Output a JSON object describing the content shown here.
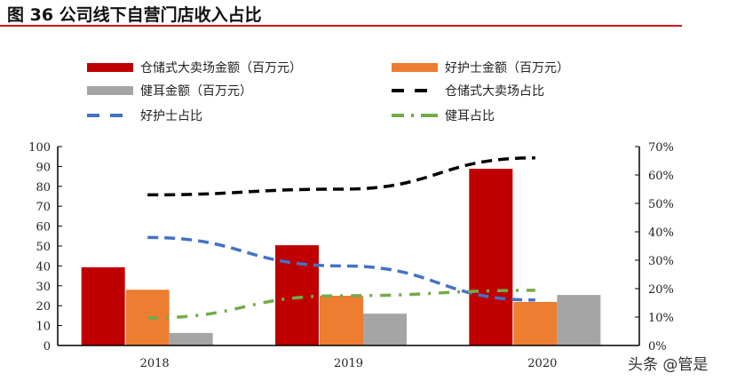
{
  "title": "图 36 公司线下自营门店收入占比",
  "watermark": "头条 @管是",
  "chart_data": {
    "type": "bar",
    "categories": [
      "2018",
      "2019",
      "2020"
    ],
    "series": [
      {
        "name": "仓储式大卖场金额（百万元）",
        "kind": "bar",
        "axis": "left",
        "color": "#c00000",
        "values": [
          39.3,
          50.4,
          88.8
        ]
      },
      {
        "name": "好护士金额（百万元）",
        "kind": "bar",
        "axis": "left",
        "color": "#ed7d31",
        "values": [
          28.0,
          25.0,
          21.9
        ]
      },
      {
        "name": "健耳金额（百万元）",
        "kind": "bar",
        "axis": "left",
        "color": "#a5a5a5",
        "values": [
          6.3,
          16.0,
          25.4
        ]
      },
      {
        "name": "仓储式大卖场占比",
        "kind": "line",
        "dash": "dash",
        "axis": "right",
        "color": "#000000",
        "values": [
          53,
          55,
          66
        ]
      },
      {
        "name": "好护士占比",
        "kind": "line",
        "dash": "dash",
        "axis": "right",
        "color": "#4472c4",
        "values": [
          38,
          28,
          16
        ]
      },
      {
        "name": "健耳占比",
        "kind": "line",
        "dash": "dashdot",
        "axis": "right",
        "color": "#70ad47",
        "values": [
          9.7,
          17.5,
          19.4
        ]
      }
    ],
    "ylim": [
      0,
      100
    ],
    "yticks": [
      "0",
      "10",
      "20",
      "30",
      "40",
      "50",
      "60",
      "70",
      "80",
      "90",
      "100"
    ],
    "y2lim": [
      0,
      70
    ],
    "y2ticks": [
      "0%",
      "10%",
      "20%",
      "30%",
      "40%",
      "50%",
      "60%",
      "70%"
    ],
    "grid": false,
    "legend": "top"
  }
}
